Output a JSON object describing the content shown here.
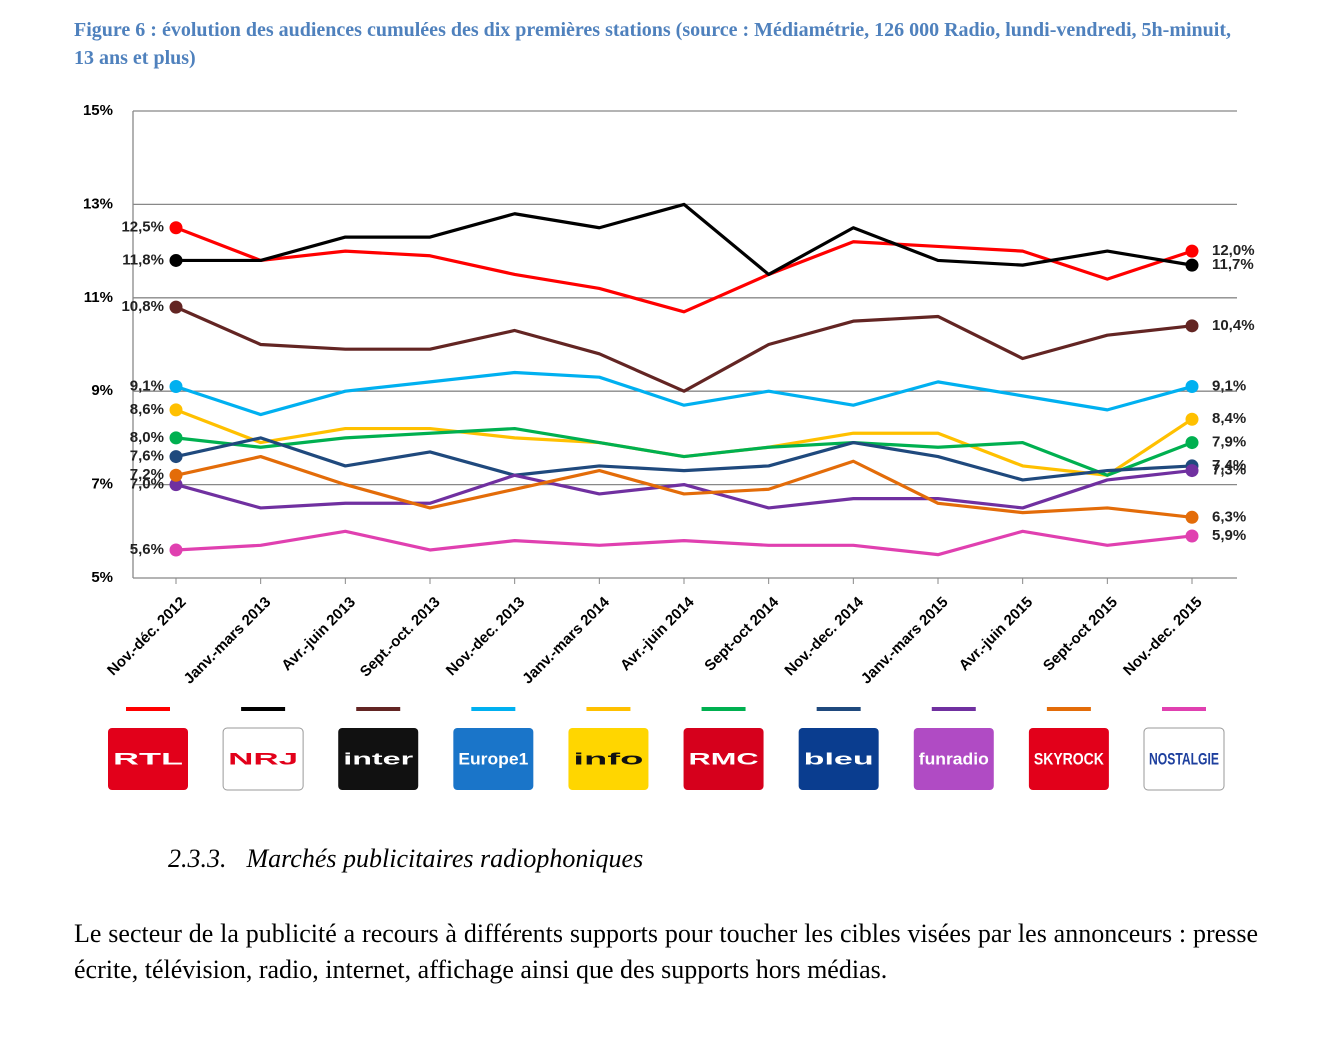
{
  "chart_data": {
    "type": "line",
    "title": "Figure 6 : évolution des audiences cumulées des dix premières stations (source : Médiamétrie, 126 000 Radio, lundi-vendredi, 5h-minuit, 13 ans et plus)",
    "categories": [
      "Nov.-déc. 2012",
      "Janv.-mars 2013",
      "Avr.-juin 2013",
      "Sept.-oct. 2013",
      "Nov.-dec. 2013",
      "Janv.-mars 2014",
      "Avr.-juin 2014",
      "Sept-oct 2014",
      "Nov.-dec. 2014",
      "Janv.-mars 2015",
      "Avr.-juin 2015",
      "Sept-oct 2015",
      "Nov.-dec. 2015"
    ],
    "ylim": [
      5,
      15
    ],
    "yticks": [
      {
        "value": 5,
        "label": "5%"
      },
      {
        "value": 7,
        "label": "7%"
      },
      {
        "value": 9,
        "label": "9%"
      },
      {
        "value": 11,
        "label": "11%"
      },
      {
        "value": 13,
        "label": "13%"
      },
      {
        "value": 15,
        "label": "15%"
      }
    ],
    "grid": true,
    "series": [
      {
        "name": "RTL",
        "color": "#ff0000",
        "values": [
          12.5,
          11.8,
          12.0,
          11.9,
          11.5,
          11.2,
          10.7,
          11.5,
          12.2,
          12.1,
          12.0,
          11.4,
          12.0
        ],
        "value_labels": [
          "12,5%",
          null,
          null,
          null,
          null,
          null,
          null,
          null,
          null,
          null,
          null,
          null,
          "12,0%"
        ]
      },
      {
        "name": "NRJ",
        "color": "#000000",
        "values": [
          11.8,
          11.8,
          12.3,
          12.3,
          12.8,
          12.5,
          13.0,
          11.5,
          12.5,
          11.8,
          11.7,
          12.0,
          11.7
        ],
        "value_labels": [
          "11,8%",
          null,
          null,
          null,
          null,
          null,
          null,
          null,
          null,
          null,
          null,
          null,
          "11,7%"
        ]
      },
      {
        "name": "inter",
        "color": "#632523",
        "values": [
          10.8,
          10.0,
          9.9,
          9.9,
          10.3,
          9.8,
          9.0,
          10.0,
          10.5,
          10.6,
          9.7,
          10.2,
          10.4
        ],
        "value_labels": [
          "10,8%",
          null,
          null,
          null,
          null,
          null,
          null,
          null,
          null,
          null,
          null,
          null,
          "10,4%"
        ]
      },
      {
        "name": "Europe1",
        "color": "#00b0f0",
        "values": [
          9.1,
          8.5,
          9.0,
          9.2,
          9.4,
          9.3,
          8.7,
          9.0,
          8.7,
          9.2,
          8.9,
          8.6,
          9.1
        ],
        "value_labels": [
          "9,1%",
          null,
          null,
          null,
          null,
          null,
          null,
          null,
          null,
          null,
          null,
          null,
          "9,1%"
        ]
      },
      {
        "name": "info",
        "color": "#ffc000",
        "values": [
          8.6,
          7.9,
          8.2,
          8.2,
          8.0,
          7.9,
          7.6,
          7.8,
          8.1,
          8.1,
          7.4,
          7.2,
          8.4
        ],
        "value_labels": [
          "8,6%",
          null,
          null,
          null,
          null,
          null,
          null,
          null,
          null,
          null,
          null,
          null,
          "8,4%"
        ]
      },
      {
        "name": "RMC",
        "color": "#00b050",
        "values": [
          8.0,
          7.8,
          8.0,
          8.1,
          8.2,
          7.9,
          7.6,
          7.8,
          7.9,
          7.8,
          7.9,
          7.2,
          7.9
        ],
        "value_labels": [
          "8,0%",
          null,
          null,
          null,
          null,
          null,
          null,
          null,
          null,
          null,
          null,
          null,
          "7,9%"
        ]
      },
      {
        "name": "bleu",
        "color": "#1f497d",
        "values": [
          7.6,
          8.0,
          7.4,
          7.7,
          7.2,
          7.4,
          7.3,
          7.4,
          7.9,
          7.6,
          7.1,
          7.3,
          7.4
        ],
        "value_labels": [
          "7,6%",
          null,
          null,
          null,
          null,
          null,
          null,
          null,
          null,
          null,
          null,
          null,
          "7,4%"
        ]
      },
      {
        "name": "funradio",
        "color": "#7030a0",
        "values": [
          7.0,
          6.5,
          6.6,
          6.6,
          7.2,
          6.8,
          7.0,
          6.5,
          6.7,
          6.7,
          6.5,
          7.1,
          7.3
        ],
        "value_labels": [
          "7,0%",
          null,
          null,
          null,
          null,
          null,
          null,
          null,
          null,
          null,
          null,
          null,
          "7,3%"
        ]
      },
      {
        "name": "SKYROCK",
        "color": "#e36c09",
        "values": [
          7.2,
          7.6,
          7.0,
          6.5,
          6.9,
          7.3,
          6.8,
          6.9,
          7.5,
          6.6,
          6.4,
          6.5,
          6.3
        ],
        "value_labels": [
          "7,2%",
          null,
          null,
          null,
          null,
          null,
          null,
          null,
          null,
          null,
          null,
          null,
          "6,3%"
        ]
      },
      {
        "name": "NOSTALGIE",
        "color": "#e040b0",
        "values": [
          5.6,
          5.7,
          6.0,
          5.6,
          5.8,
          5.7,
          5.8,
          5.7,
          5.7,
          5.5,
          6.0,
          5.7,
          5.9
        ],
        "value_labels": [
          "5,6%",
          null,
          null,
          null,
          null,
          null,
          null,
          null,
          null,
          null,
          null,
          null,
          "5,9%"
        ]
      }
    ]
  },
  "section": {
    "number": "2.3.3.",
    "title": "Marchés publicitaires radiophoniques"
  },
  "paragraph": "Le secteur de la publicité a recours à différents supports pour toucher les cibles visées par les annonceurs : presse écrite, télévision, radio, internet, affichage ainsi que des supports hors médias."
}
